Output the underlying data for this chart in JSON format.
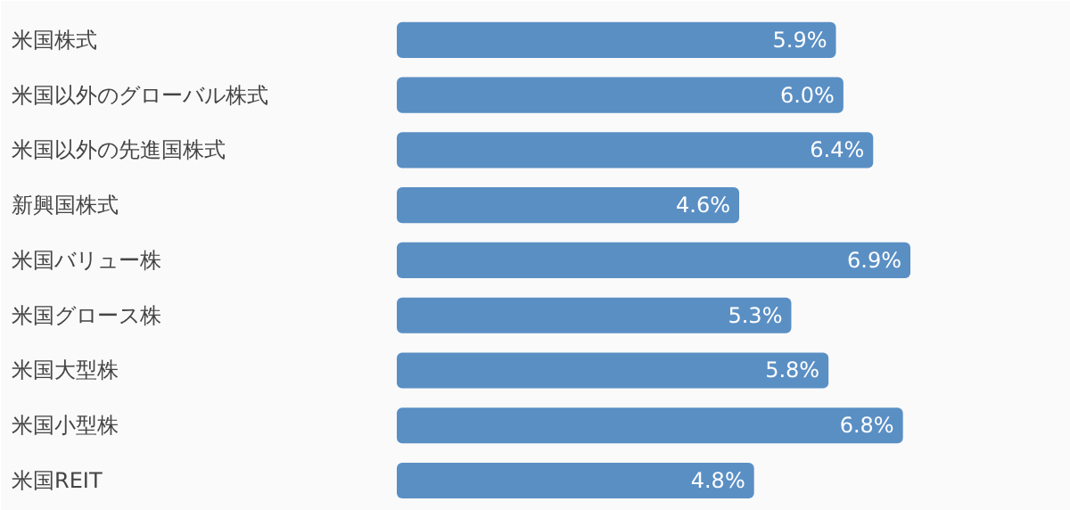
{
  "chart_data": {
    "type": "bar",
    "orientation": "horizontal",
    "categories": [
      "米国株式",
      "米国以外のグローバル株式",
      "米国以外の先進国株式",
      "新興国株式",
      "米国バリュー株",
      "米国グロース株",
      "米国大型株",
      "米国小型株",
      "米国REIT"
    ],
    "values": [
      5.9,
      6.0,
      6.4,
      4.6,
      6.9,
      5.3,
      5.8,
      6.8,
      4.8
    ],
    "value_labels": [
      "5.9%",
      "6.0%",
      "6.4%",
      "4.6%",
      "6.9%",
      "5.3%",
      "5.8%",
      "6.8%",
      "4.8%"
    ],
    "color": "#5a8fc4"
  }
}
